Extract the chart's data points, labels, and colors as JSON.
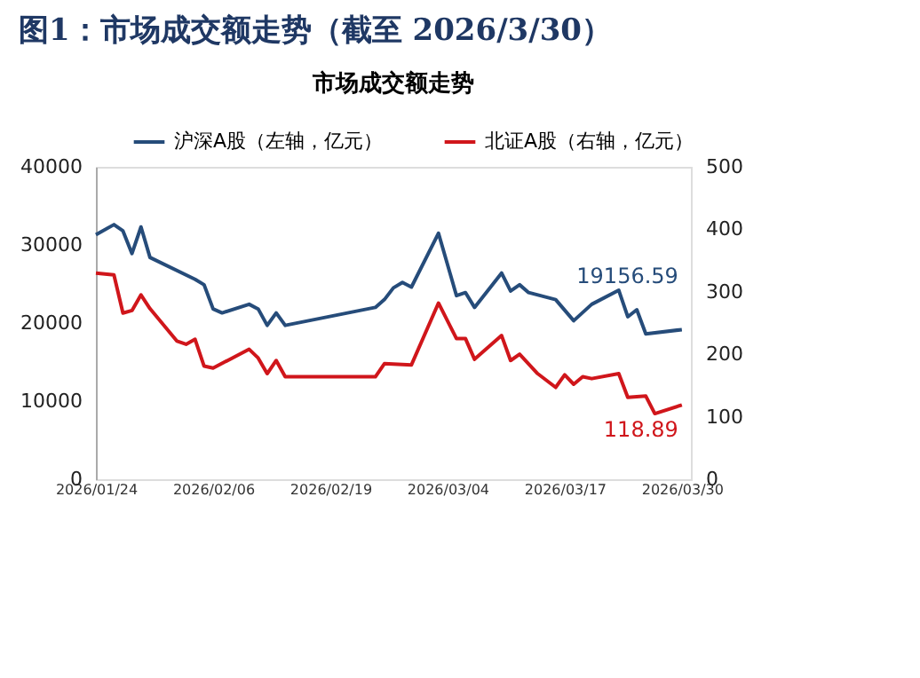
{
  "chart_data": {
    "type": "line",
    "title": "图1：市场成交额走势（截至 2026/3/30）",
    "subtitle": "市场成交额走势",
    "xlim": [
      "2026-01-24",
      "2026-03-31"
    ],
    "xticks": [
      {
        "value": "2026-01-24",
        "label": "2026/01/24"
      },
      {
        "value": "2026-02-06",
        "label": "2026/02/06"
      },
      {
        "value": "2026-02-19",
        "label": "2026/02/19"
      },
      {
        "value": "2026-03-04",
        "label": "2026/03/04"
      },
      {
        "value": "2026-03-17",
        "label": "2026/03/17"
      },
      {
        "value": "2026-03-30",
        "label": "2026/03/30"
      }
    ],
    "ylim": [
      0,
      40000
    ],
    "yticks": [
      0,
      {
        "value": 10000,
        "label": "10000"
      },
      {
        "value": 20000,
        "label": "20000"
      },
      {
        "value": 30000,
        "label": "30000"
      },
      {
        "value": 40000,
        "label": "40000"
      }
    ],
    "y2lim": [
      0,
      500
    ],
    "y2ticks": [
      0,
      100,
      200,
      300,
      400,
      500
    ],
    "legend": "top",
    "grid": false,
    "line_style": "solid",
    "series": [
      {
        "name": "沪深A股（左轴，亿元）",
        "color": "#264c7a",
        "axis": "y",
        "x": [
          "2026-01-24",
          "2026-01-26",
          "2026-01-27",
          "2026-01-28",
          "2026-01-29",
          "2026-01-30",
          "2026-02-04",
          "2026-02-05",
          "2026-02-06",
          "2026-02-07",
          "2026-02-10",
          "2026-02-11",
          "2026-02-12",
          "2026-02-13",
          "2026-02-14",
          "2026-02-24",
          "2026-02-25",
          "2026-02-26",
          "2026-02-27",
          "2026-02-28",
          "2026-03-03",
          "2026-03-05",
          "2026-03-06",
          "2026-03-07",
          "2026-03-10",
          "2026-03-11",
          "2026-03-12",
          "2026-03-13",
          "2026-03-16",
          "2026-03-18",
          "2026-03-20",
          "2026-03-23",
          "2026-03-24",
          "2026-03-25",
          "2026-03-26",
          "2026-03-30"
        ],
        "values": [
          31300,
          32600,
          31800,
          28900,
          32300,
          28400,
          25600,
          24900,
          21800,
          21300,
          22400,
          21800,
          19700,
          21300,
          19700,
          22000,
          23000,
          24500,
          25200,
          24600,
          31500,
          23500,
          23900,
          22000,
          26400,
          24100,
          24900,
          23900,
          23000,
          20300,
          22400,
          24200,
          20800,
          21700,
          18600,
          19156.59
        ]
      },
      {
        "name": "北证A股（右轴，亿元）",
        "color": "#d0161b",
        "axis": "y2",
        "x": [
          "2026-01-24",
          "2026-01-26",
          "2026-01-27",
          "2026-01-28",
          "2026-01-29",
          "2026-01-30",
          "2026-02-02",
          "2026-02-03",
          "2026-02-04",
          "2026-02-05",
          "2026-02-06",
          "2026-02-10",
          "2026-02-11",
          "2026-02-12",
          "2026-02-13",
          "2026-02-14",
          "2026-02-24",
          "2026-02-25",
          "2026-02-28",
          "2026-03-03",
          "2026-03-05",
          "2026-03-06",
          "2026-03-07",
          "2026-03-10",
          "2026-03-11",
          "2026-03-12",
          "2026-03-14",
          "2026-03-16",
          "2026-03-17",
          "2026-03-18",
          "2026-03-19",
          "2026-03-20",
          "2026-03-23",
          "2026-03-24",
          "2026-03-26",
          "2026-03-27",
          "2026-03-30"
        ],
        "values": [
          330,
          327,
          266,
          270,
          295,
          273,
          221,
          216,
          224,
          181,
          178,
          208,
          194,
          169,
          190,
          164,
          164,
          185,
          183,
          282,
          225,
          225,
          192,
          230,
          190,
          200,
          169,
          147,
          167,
          152,
          164,
          161,
          169,
          131,
          133,
          105,
          118.89
        ]
      }
    ],
    "annotations": [
      "19156.59",
      "118.89"
    ]
  }
}
